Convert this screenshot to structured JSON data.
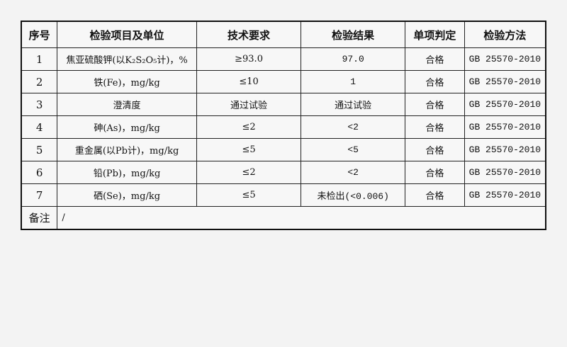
{
  "headers": [
    "序号",
    "检验项目及单位",
    "技术要求",
    "检验结果",
    "单项判定",
    "检验方法"
  ],
  "rows": [
    {
      "no": "1",
      "item": "焦亚硫酸钾(以K₂S₂O₅计)，%",
      "requirement": "≥93.0",
      "result": "97.0",
      "judgement": "合格",
      "method": "GB 25570-2010"
    },
    {
      "no": "2",
      "item": "铁(Fe)，mg/kg",
      "requirement": "≤10",
      "result": "1",
      "judgement": "合格",
      "method": "GB 25570-2010"
    },
    {
      "no": "3",
      "item": "澄清度",
      "requirement": "通过试验",
      "result": "通过试验",
      "judgement": "合格",
      "method": "GB 25570-2010"
    },
    {
      "no": "4",
      "item": "砷(As)，mg/kg",
      "requirement": "≤2",
      "result": "<2",
      "judgement": "合格",
      "method": "GB 25570-2010"
    },
    {
      "no": "5",
      "item": "重金属(以Pb计)，mg/kg",
      "requirement": "≤5",
      "result": "<5",
      "judgement": "合格",
      "method": "GB 25570-2010"
    },
    {
      "no": "6",
      "item": "铅(Pb)，mg/kg",
      "requirement": "≤2",
      "result": "<2",
      "judgement": "合格",
      "method": "GB 25570-2010"
    },
    {
      "no": "7",
      "item": "硒(Se)，mg/kg",
      "requirement": "≤5",
      "result": "未检出(<0.006)",
      "judgement": "合格",
      "method": "GB 25570-2010"
    }
  ],
  "remarks": {
    "label": "备注",
    "value": "/"
  }
}
